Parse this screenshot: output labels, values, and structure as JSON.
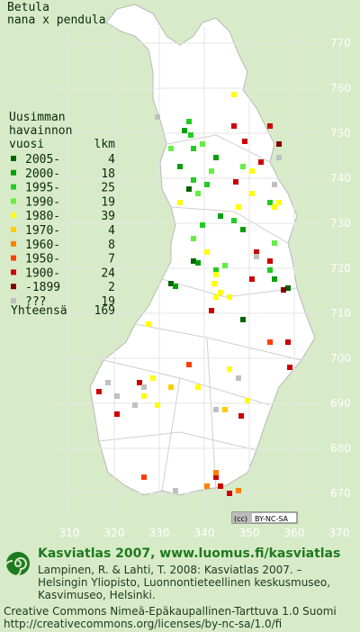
{
  "title": [
    "Betula",
    "nana x pendula"
  ],
  "legend": {
    "header": [
      "Uusimman",
      "havainnon",
      "vuosi"
    ],
    "count_header": "lkm",
    "rows": [
      {
        "label": "2005-",
        "count": 4,
        "color": "#006400"
      },
      {
        "label": "2000-",
        "count": 18,
        "color": "#00a000"
      },
      {
        "label": "1995-",
        "count": 25,
        "color": "#22cc22"
      },
      {
        "label": "1990-",
        "count": 19,
        "color": "#66ee44"
      },
      {
        "label": "1980-",
        "count": 39,
        "color": "#ffff00"
      },
      {
        "label": "1970-",
        "count": 4,
        "color": "#ffcc00"
      },
      {
        "label": "1960-",
        "count": 8,
        "color": "#ff8000"
      },
      {
        "label": "1950-",
        "count": 7,
        "color": "#ff4000"
      },
      {
        "label": "1900-",
        "count": 24,
        "color": "#cc0000"
      },
      {
        "label": "-1899",
        "count": 2,
        "color": "#800000"
      },
      {
        "label": "???",
        "count": 19,
        "color": "#c0c0c0"
      }
    ],
    "total": {
      "label": "Yhteensä",
      "count": 169
    }
  },
  "map": {
    "y_labels": [
      770,
      760,
      750,
      740,
      730,
      720,
      710,
      700,
      690,
      680,
      670
    ],
    "x_labels": [
      310,
      320,
      330,
      340,
      350,
      360,
      370
    ],
    "badge": [
      "(cc)",
      "BY-NC-SA"
    ]
  },
  "footer": {
    "brand": "Kasviatlas 2007, www.luomus.fi/kasviatlas",
    "citation": [
      "Lampinen, R. & Lahti, T. 2008: Kasviatlas 2007. –",
      "Helsingin Yliopisto, Luonnontieteellinen keskusmuseo,",
      "Kasvimuseo, Helsinki."
    ],
    "license": [
      "Creative Commons Nimeä-Epäkaupallinen-Tarttuva 1.0 Suomi",
      "http://creativecommons.org/licenses/by-nc-sa/1.0/fi"
    ]
  }
}
